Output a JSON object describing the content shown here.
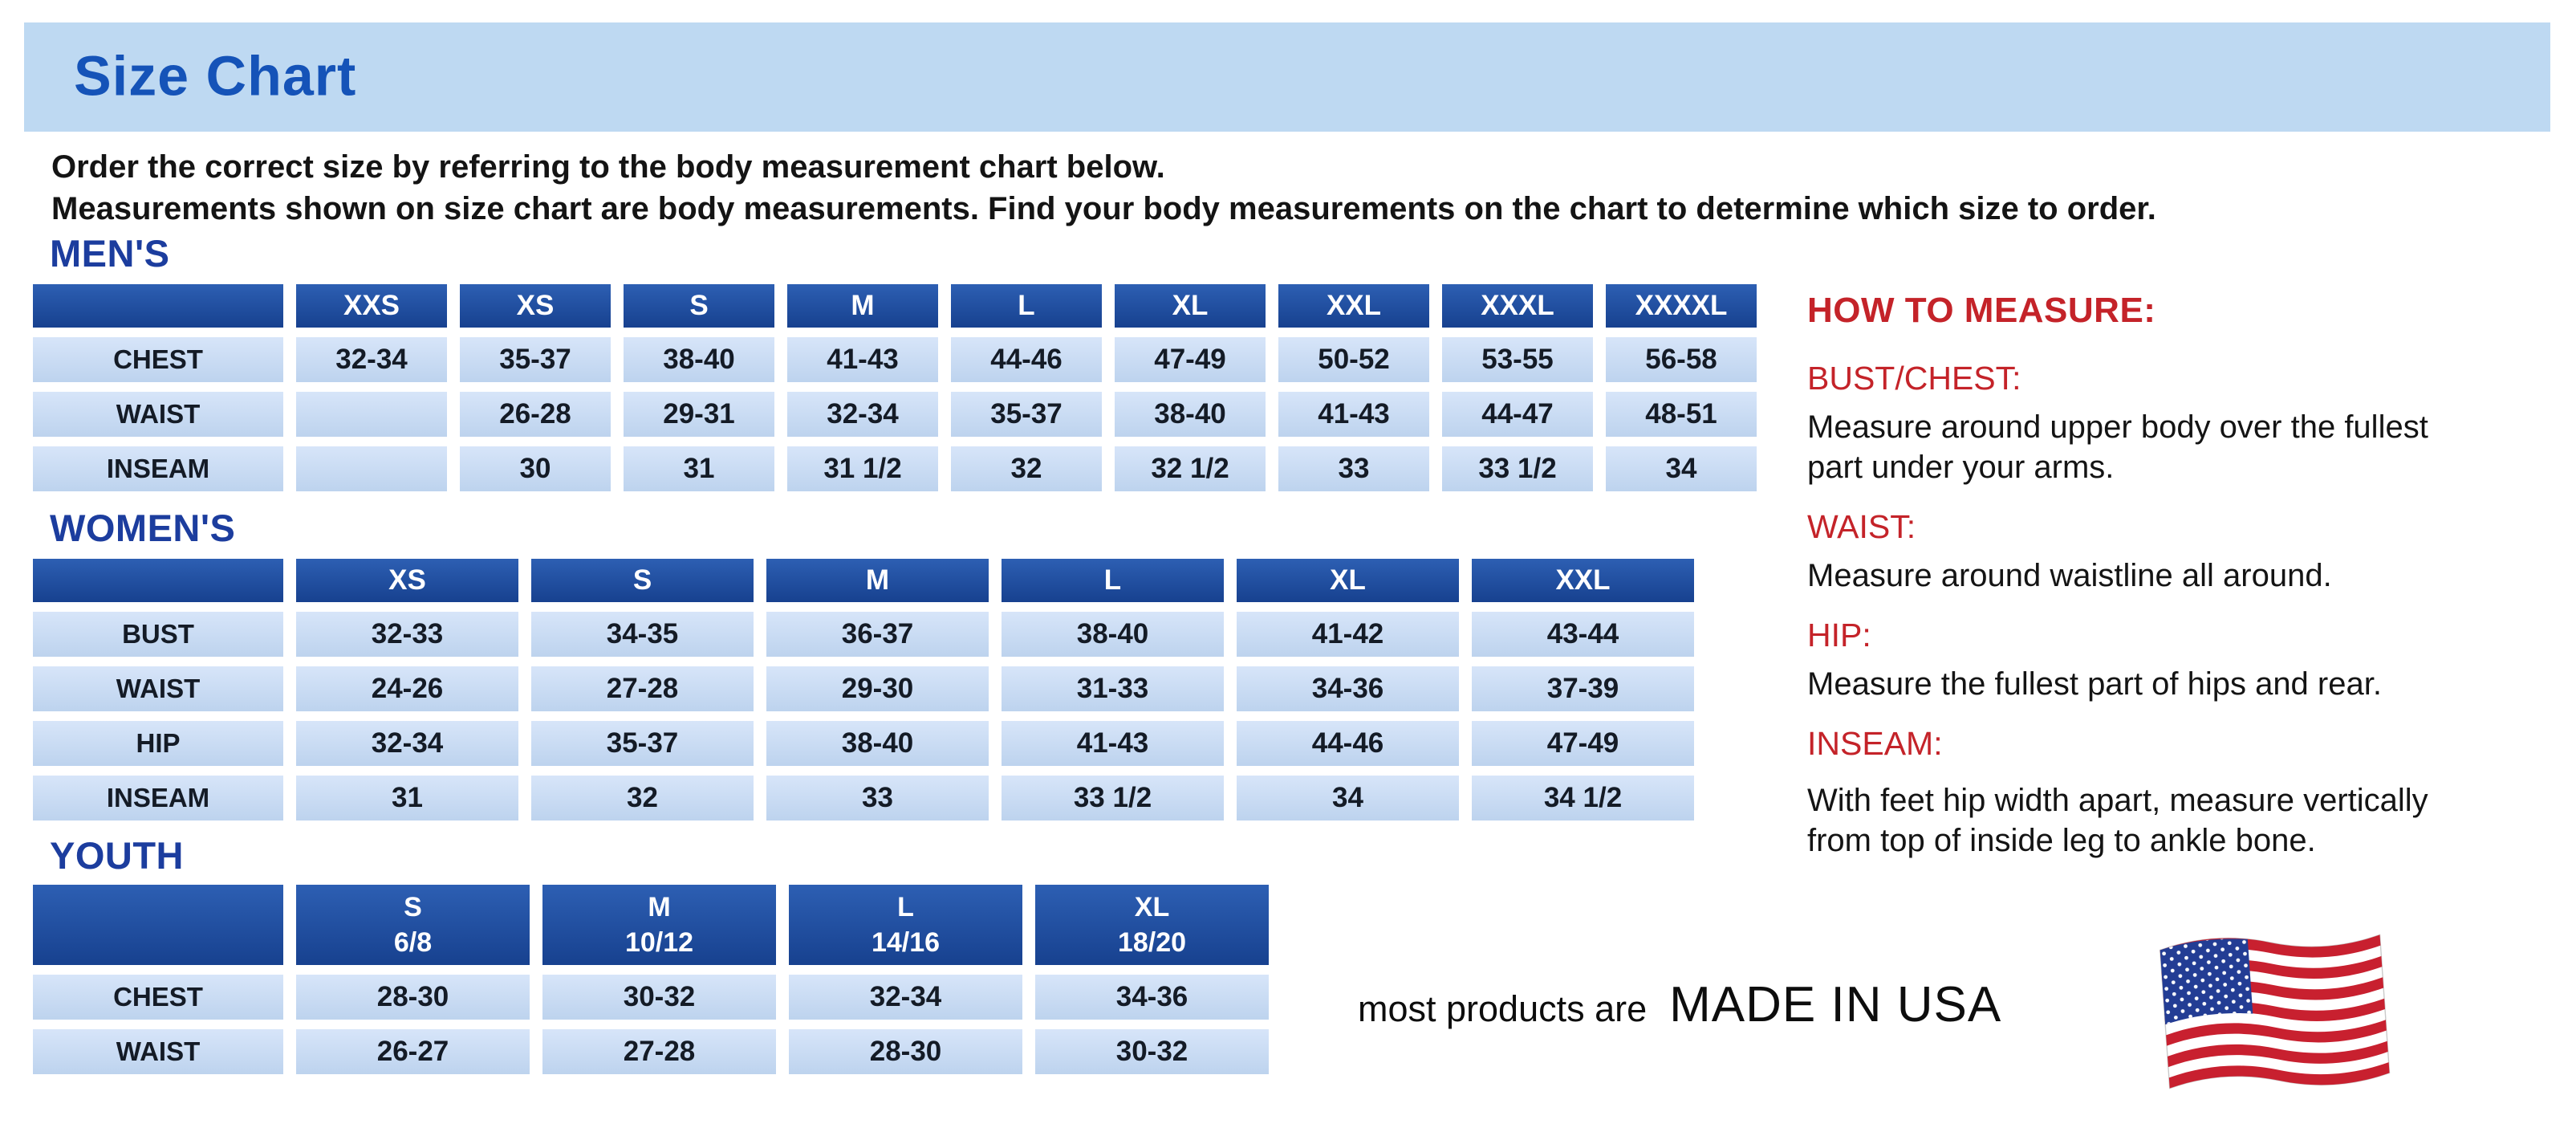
{
  "banner": {
    "title": "Size Chart"
  },
  "intro": {
    "line1": "Order the correct size by referring to the body measurement chart below.",
    "line2": "Measurements shown on size chart are body measurements.  Find your body measurements on the chart to determine which size to order."
  },
  "tables": [
    {
      "id": "mens",
      "heading": "MEN'S",
      "columns": [
        "XXS",
        "XS",
        "S",
        "M",
        "L",
        "XL",
        "XXL",
        "XXXL",
        "XXXXL"
      ],
      "rows": [
        {
          "label": "CHEST",
          "values": [
            "32-34",
            "35-37",
            "38-40",
            "41-43",
            "44-46",
            "47-49",
            "50-52",
            "53-55",
            "56-58"
          ]
        },
        {
          "label": "WAIST",
          "values": [
            "",
            "26-28",
            "29-31",
            "32-34",
            "35-37",
            "38-40",
            "41-43",
            "44-47",
            "48-51"
          ]
        },
        {
          "label": "INSEAM",
          "values": [
            "",
            "30",
            "31",
            "31 1/2",
            "32",
            "32 1/2",
            "33",
            "33 1/2",
            "34"
          ]
        }
      ]
    },
    {
      "id": "womens",
      "heading": "WOMEN'S",
      "columns": [
        "XS",
        "S",
        "M",
        "L",
        "XL",
        "XXL"
      ],
      "rows": [
        {
          "label": "BUST",
          "values": [
            "32-33",
            "34-35",
            "36-37",
            "38-40",
            "41-42",
            "43-44"
          ]
        },
        {
          "label": "WAIST",
          "values": [
            "24-26",
            "27-28",
            "29-30",
            "31-33",
            "34-36",
            "37-39"
          ]
        },
        {
          "label": "HIP",
          "values": [
            "32-34",
            "35-37",
            "38-40",
            "41-43",
            "44-46",
            "47-49"
          ]
        },
        {
          "label": "INSEAM",
          "values": [
            "31",
            "32",
            "33",
            "33 1/2",
            "34",
            "34 1/2"
          ]
        }
      ]
    },
    {
      "id": "youth",
      "heading": "YOUTH",
      "columns": [
        {
          "size": "S",
          "range": "6/8"
        },
        {
          "size": "M",
          "range": "10/12"
        },
        {
          "size": "L",
          "range": "14/16"
        },
        {
          "size": "XL",
          "range": "18/20"
        }
      ],
      "rows": [
        {
          "label": "CHEST",
          "values": [
            "28-30",
            "30-32",
            "32-34",
            "34-36"
          ]
        },
        {
          "label": "WAIST",
          "values": [
            "26-27",
            "27-28",
            "28-30",
            "30-32"
          ]
        }
      ]
    }
  ],
  "how_to_measure": {
    "title": "HOW TO MEASURE:",
    "sections": [
      {
        "label": "BUST/CHEST:",
        "text": "Measure around upper body over the fullest part under your arms."
      },
      {
        "label": "WAIST:",
        "text": "Measure around waistline all around."
      },
      {
        "label": "HIP:",
        "text": "Measure the fullest part of hips and rear."
      },
      {
        "label": "INSEAM:",
        "text": "With feet hip width apart, measure vertically from top of inside leg to ankle bone."
      }
    ]
  },
  "footer": {
    "prefix": "most products are",
    "made_in": "MADE IN USA",
    "flag": "us-flag"
  },
  "colors": {
    "banner_bg": "#BED9F2",
    "title_blue": "#1553B8",
    "heading_blue": "#1C3D9E",
    "header_cell_blue": "#1E4FA5",
    "cell_blue": "#C9DCF4",
    "accent_red": "#C42329",
    "flag_red": "#C8202F",
    "flag_blue": "#233D94"
  }
}
